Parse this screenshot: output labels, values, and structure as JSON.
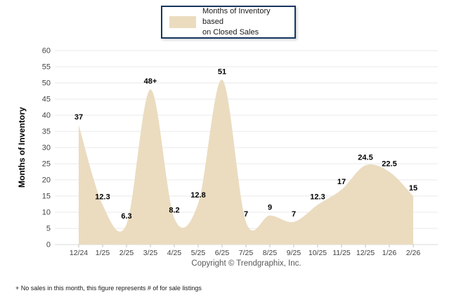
{
  "legend": {
    "line1": "Months of Inventory based",
    "line2": "on Closed Sales"
  },
  "footer": {
    "copyright": "Copyright © Trendgraphix, Inc.",
    "footnote": "+ No sales in this month, this figure represents # of for sale listings"
  },
  "chart_data": {
    "type": "area",
    "title": "",
    "series_name": "Months of Inventory based on Closed Sales",
    "categories": [
      "12/24",
      "1/25",
      "2/25",
      "3/25",
      "4/25",
      "5/25",
      "6/25",
      "7/25",
      "8/25",
      "9/25",
      "10/25",
      "11/25",
      "12/25",
      "1/26",
      "2/26"
    ],
    "values": [
      37,
      12.3,
      6.3,
      48,
      8.2,
      12.8,
      51,
      7,
      9,
      7,
      12.3,
      17,
      24.5,
      22.5,
      15
    ],
    "point_labels": [
      "37",
      "12.3",
      "6.3",
      "48+",
      "8.2",
      "12.8",
      "51",
      "7",
      "9",
      "7",
      "12.3",
      "17",
      "24.5",
      "22.5",
      "15"
    ],
    "xlabel": "",
    "ylabel": "Months of Inventory",
    "ylim": [
      0,
      60
    ],
    "ytick_step": 5,
    "grid": "horizontal",
    "legend_position": "top-center",
    "colors": {
      "area_fill": "#EBDCC0",
      "grid_line": "#E8E8E8",
      "baseline": "#D9D9D9",
      "tick_mark": "#C0C0C0",
      "axis_text": "#444444",
      "data_label": "#000000",
      "legend_border": "#17375E"
    }
  }
}
